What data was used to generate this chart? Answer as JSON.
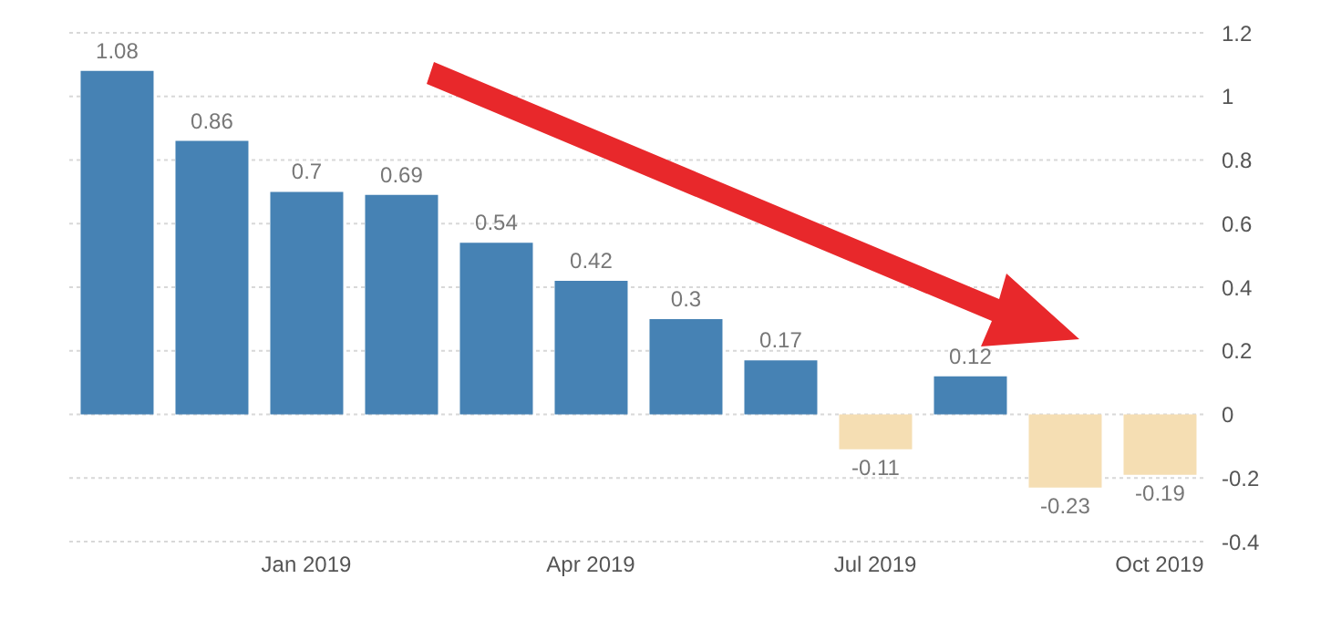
{
  "chart_data": {
    "type": "bar",
    "categories": [
      null,
      null,
      "Jan 2019",
      null,
      null,
      "Apr 2019",
      null,
      null,
      "Jul 2019",
      null,
      null,
      "Oct 2019"
    ],
    "values": [
      1.08,
      0.86,
      0.7,
      0.69,
      0.54,
      0.42,
      0.3,
      0.17,
      -0.11,
      0.12,
      -0.23,
      -0.19
    ],
    "colors": [
      "#4682b4",
      "#4682b4",
      "#4682b4",
      "#4682b4",
      "#4682b4",
      "#4682b4",
      "#4682b4",
      "#4682b4",
      "#f5deb3",
      "#4682b4",
      "#f5deb3",
      "#f5deb3"
    ],
    "ylim": [
      -0.4,
      1.2
    ],
    "yticks": [
      -0.4,
      -0.2,
      0,
      0.2,
      0.4,
      0.6,
      0.8,
      1,
      1.2
    ],
    "grid": "y",
    "data_labels": true
  }
}
